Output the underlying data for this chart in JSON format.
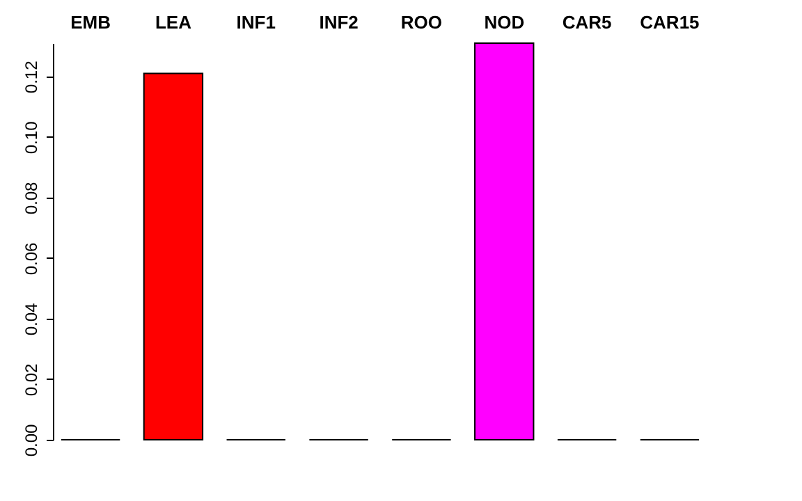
{
  "chart_data": {
    "type": "bar",
    "categories": [
      "EMB",
      "LEA",
      "INF1",
      "INF2",
      "ROO",
      "NOD",
      "CAR5",
      "CAR15"
    ],
    "values": [
      0,
      0.121,
      0,
      0,
      0,
      0.131,
      0,
      0
    ],
    "colors": [
      null,
      "#ff0000",
      null,
      null,
      null,
      "#ff00ff",
      null,
      null
    ],
    "ylim": [
      0,
      0.131
    ],
    "yticks": [
      {
        "value": 0,
        "label": "0.00"
      },
      {
        "value": 0.02,
        "label": "0.02"
      },
      {
        "value": 0.04,
        "label": "0.04"
      },
      {
        "value": 0.06,
        "label": "0.06"
      },
      {
        "value": 0.08,
        "label": "0.08"
      },
      {
        "value": 0.1,
        "label": "0.10"
      },
      {
        "value": 0.12,
        "label": "0.12"
      }
    ],
    "grid": false
  }
}
